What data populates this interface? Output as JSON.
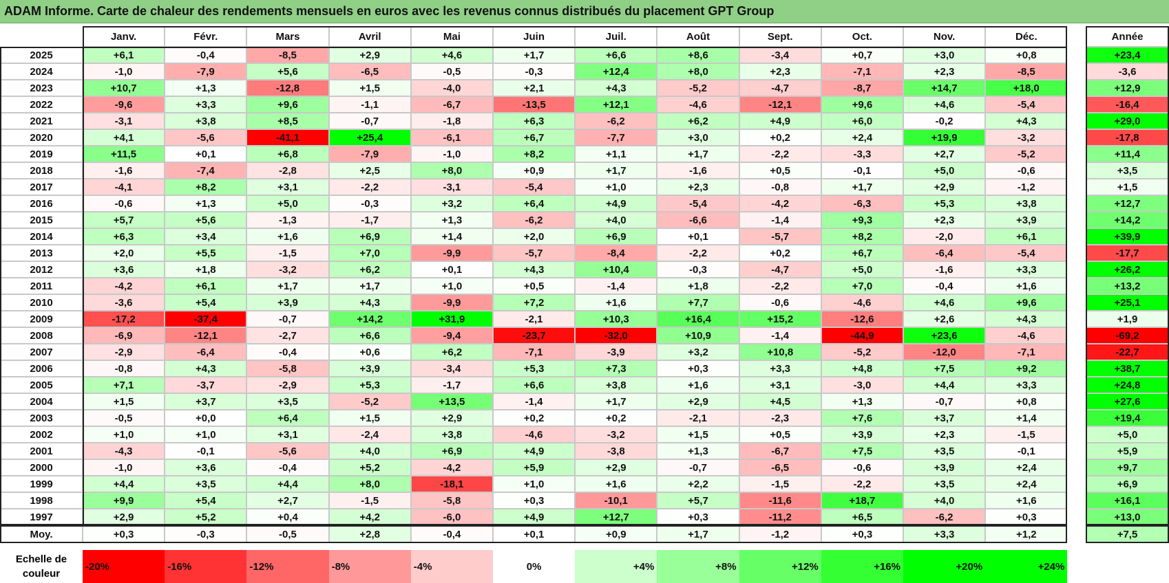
{
  "title": "ADAM Informe. Carte de chaleur des rendements mensuels en euros avec les revenus connus distribués du placement GPT Group",
  "chart_data": {
    "type": "heatmap",
    "title": "ADAM Informe. Carte de chaleur des rendements mensuels en euros avec les revenus connus distribués du placement GPT Group",
    "columns": [
      "Janv.",
      "Févr.",
      "Mars",
      "Avril",
      "Mai",
      "Juin",
      "Juil.",
      "Août",
      "Sept.",
      "Oct.",
      "Nov.",
      "Déc."
    ],
    "year_column": "Année",
    "rows": [
      {
        "year": "2025",
        "values": [
          "+6,1",
          "-0,4",
          "-8,5",
          "+2,9",
          "+4,6",
          "+1,7",
          "+6,6",
          "+8,6",
          "-3,4",
          "+0,7",
          "+3,0",
          "+0,8"
        ],
        "total": "+23,4"
      },
      {
        "year": "2024",
        "values": [
          "-1,0",
          "-7,9",
          "+5,6",
          "-6,5",
          "-0,5",
          "-0,3",
          "+12,4",
          "+8,0",
          "+2,3",
          "-7,1",
          "+2,3",
          "-8,5"
        ],
        "total": "-3,6"
      },
      {
        "year": "2023",
        "values": [
          "+10,7",
          "+1,3",
          "-12,8",
          "+1,5",
          "-4,0",
          "+2,1",
          "+4,3",
          "-5,2",
          "-4,7",
          "-8,7",
          "+14,7",
          "+18,0"
        ],
        "total": "+12,9"
      },
      {
        "year": "2022",
        "values": [
          "-9,6",
          "+3,3",
          "+9,6",
          "-1,1",
          "-6,7",
          "-13,5",
          "+12,1",
          "-4,6",
          "-12,1",
          "+9,6",
          "+4,6",
          "-5,4"
        ],
        "total": "-16,4"
      },
      {
        "year": "2021",
        "values": [
          "-3,1",
          "+3,8",
          "+8,5",
          "-0,7",
          "-1,8",
          "+6,3",
          "-6,2",
          "+6,2",
          "+4,9",
          "+6,0",
          "-0,2",
          "+4,3"
        ],
        "total": "+29,0"
      },
      {
        "year": "2020",
        "values": [
          "+4,1",
          "-5,6",
          "-41,1",
          "+25,4",
          "-6,1",
          "+6,7",
          "-7,7",
          "+3,0",
          "+0,2",
          "+2,4",
          "+19,9",
          "-3,2"
        ],
        "total": "-17,8"
      },
      {
        "year": "2019",
        "values": [
          "+11,5",
          "+0,1",
          "+6,8",
          "-7,9",
          "-1,0",
          "+8,2",
          "+1,1",
          "+1,7",
          "-2,2",
          "-3,3",
          "+2,7",
          "-5,2"
        ],
        "total": "+11,4"
      },
      {
        "year": "2018",
        "values": [
          "-1,6",
          "-7,4",
          "-2,8",
          "+2,5",
          "+8,0",
          "+0,9",
          "+1,7",
          "-1,6",
          "+0,5",
          "-0,1",
          "+5,0",
          "-0,6"
        ],
        "total": "+3,5"
      },
      {
        "year": "2017",
        "values": [
          "-4,1",
          "+8,2",
          "+3,1",
          "-2,2",
          "-3,1",
          "-5,4",
          "+1,0",
          "+2,3",
          "-0,8",
          "+1,7",
          "+2,9",
          "-1,2"
        ],
        "total": "+1,5"
      },
      {
        "year": "2016",
        "values": [
          "-0,6",
          "+1,3",
          "+5,0",
          "-0,3",
          "+3,2",
          "+6,4",
          "+4,9",
          "-5,4",
          "-4,2",
          "-6,3",
          "+5,3",
          "+3,8"
        ],
        "total": "+12,7"
      },
      {
        "year": "2015",
        "values": [
          "+5,7",
          "+5,6",
          "-1,3",
          "-1,7",
          "+1,3",
          "-6,2",
          "+4,0",
          "-6,6",
          "-1,4",
          "+9,3",
          "+2,3",
          "+3,9"
        ],
        "total": "+14,2"
      },
      {
        "year": "2014",
        "values": [
          "+6,3",
          "+3,4",
          "+1,6",
          "+6,9",
          "+1,4",
          "+2,0",
          "+6,9",
          "+0,1",
          "-5,7",
          "+8,2",
          "-2,0",
          "+6,1"
        ],
        "total": "+39,9"
      },
      {
        "year": "2013",
        "values": [
          "+2,0",
          "+5,5",
          "-1,5",
          "+7,0",
          "-9,9",
          "-5,7",
          "-8,4",
          "-2,2",
          "+0,2",
          "+6,7",
          "-6,4",
          "-5,4"
        ],
        "total": "-17,7"
      },
      {
        "year": "2012",
        "values": [
          "+3,6",
          "+1,8",
          "-3,2",
          "+6,2",
          "+0,1",
          "+4,3",
          "+10,4",
          "-0,3",
          "-4,7",
          "+5,0",
          "-1,6",
          "+3,3"
        ],
        "total": "+26,2"
      },
      {
        "year": "2011",
        "values": [
          "-4,2",
          "+6,1",
          "+1,7",
          "+1,7",
          "+1,0",
          "+0,5",
          "-1,4",
          "+1,8",
          "-2,2",
          "+7,0",
          "-0,4",
          "+1,6"
        ],
        "total": "+13,2"
      },
      {
        "year": "2010",
        "values": [
          "-3,6",
          "+5,4",
          "+3,9",
          "+4,3",
          "-9,9",
          "+7,2",
          "+1,6",
          "+7,7",
          "-0,6",
          "-4,6",
          "+4,6",
          "+9,6"
        ],
        "total": "+25,1"
      },
      {
        "year": "2009",
        "values": [
          "-17,2",
          "-37,4",
          "-0,7",
          "+14,2",
          "+31,9",
          "-2,1",
          "+10,3",
          "+16,4",
          "+15,2",
          "-12,6",
          "+2,6",
          "+4,3"
        ],
        "total": "+1,9"
      },
      {
        "year": "2008",
        "values": [
          "-6,9",
          "-12,1",
          "-2,7",
          "+6,6",
          "-9,4",
          "-23,7",
          "-32,0",
          "+10,9",
          "-1,4",
          "-44,9",
          "+23,6",
          "-4,6"
        ],
        "total": "-69,2"
      },
      {
        "year": "2007",
        "values": [
          "-2,9",
          "-6,4",
          "-0,4",
          "+0,6",
          "+6,2",
          "-7,1",
          "-3,9",
          "+3,2",
          "+10,8",
          "-5,2",
          "-12,0",
          "-7,1"
        ],
        "total": "-22,7"
      },
      {
        "year": "2006",
        "values": [
          "-0,8",
          "+4,3",
          "-5,8",
          "+3,9",
          "-3,4",
          "+5,3",
          "+7,3",
          "+0,3",
          "+3,3",
          "+4,8",
          "+7,5",
          "+9,2"
        ],
        "total": "+38,7"
      },
      {
        "year": "2005",
        "values": [
          "+7,1",
          "-3,7",
          "-2,9",
          "+5,3",
          "-1,7",
          "+6,6",
          "+3,8",
          "+1,6",
          "+3,1",
          "-3,0",
          "+4,4",
          "+3,3"
        ],
        "total": "+24,8"
      },
      {
        "year": "2004",
        "values": [
          "+1,5",
          "+3,7",
          "+3,5",
          "-5,2",
          "+13,5",
          "-1,4",
          "+1,7",
          "+2,9",
          "+4,5",
          "+1,3",
          "-0,7",
          "+0,8"
        ],
        "total": "+27,6"
      },
      {
        "year": "2003",
        "values": [
          "-0,5",
          "+0,0",
          "+6,4",
          "+1,5",
          "+2,9",
          "+0,2",
          "+0,2",
          "-2,1",
          "-2,3",
          "+7,6",
          "+3,7",
          "+1,4"
        ],
        "total": "+19,4"
      },
      {
        "year": "2002",
        "values": [
          "+1,0",
          "+1,0",
          "+3,1",
          "-2,4",
          "+3,8",
          "-4,6",
          "-3,2",
          "+1,5",
          "+0,5",
          "+3,9",
          "+2,3",
          "-1,5"
        ],
        "total": "+5,0"
      },
      {
        "year": "2001",
        "values": [
          "-4,3",
          "-0,1",
          "-5,6",
          "+4,0",
          "+6,9",
          "+4,9",
          "-3,8",
          "+1,3",
          "-6,7",
          "+7,5",
          "+3,5",
          "-0,1"
        ],
        "total": "+5,9"
      },
      {
        "year": "2000",
        "values": [
          "-1,0",
          "+3,6",
          "-0,4",
          "+5,2",
          "-4,2",
          "+5,9",
          "+2,9",
          "-0,7",
          "-6,5",
          "-0,6",
          "+3,9",
          "+2,4"
        ],
        "total": "+9,7"
      },
      {
        "year": "1999",
        "values": [
          "+4,4",
          "+3,5",
          "+4,4",
          "+8,0",
          "-18,1",
          "+1,0",
          "+1,6",
          "+2,2",
          "-1,5",
          "-2,2",
          "+3,5",
          "+2,4"
        ],
        "total": "+6,9"
      },
      {
        "year": "1998",
        "values": [
          "+9,9",
          "+5,4",
          "+2,7",
          "-1,5",
          "-5,8",
          "+0,3",
          "-10,1",
          "+5,7",
          "-11,6",
          "+18,7",
          "+4,0",
          "+1,6"
        ],
        "total": "+16,1"
      },
      {
        "year": "1997",
        "values": [
          "+2,9",
          "+5,2",
          "+0,4",
          "+4,2",
          "-6,0",
          "+4,9",
          "+12,7",
          "+0,3",
          "-11,2",
          "+6,5",
          "-6,2",
          "+0,3"
        ],
        "total": "+13,0"
      }
    ],
    "average_row": {
      "label": "Moy.",
      "values": [
        "+0,3",
        "-0,3",
        "-0,5",
        "+2,8",
        "-0,4",
        "+0,1",
        "+0,9",
        "+1,7",
        "-1,2",
        "+0,3",
        "+3,3",
        "+1,2"
      ],
      "total": "+7,5"
    },
    "legend": {
      "title_line1": "Echelle de",
      "title_line2": "couleur",
      "stops": [
        "-20%",
        "-16%",
        "-12%",
        "-8%",
        "-4%",
        "0%",
        "+4%",
        "+8%",
        "+12%",
        "+16%",
        "+20%",
        "+24%"
      ]
    },
    "colors": {
      "negative_max": "#ff0000",
      "zero": "#ffffff",
      "positive_max": "#00ff00",
      "title_bar": "#8fcf86"
    }
  }
}
